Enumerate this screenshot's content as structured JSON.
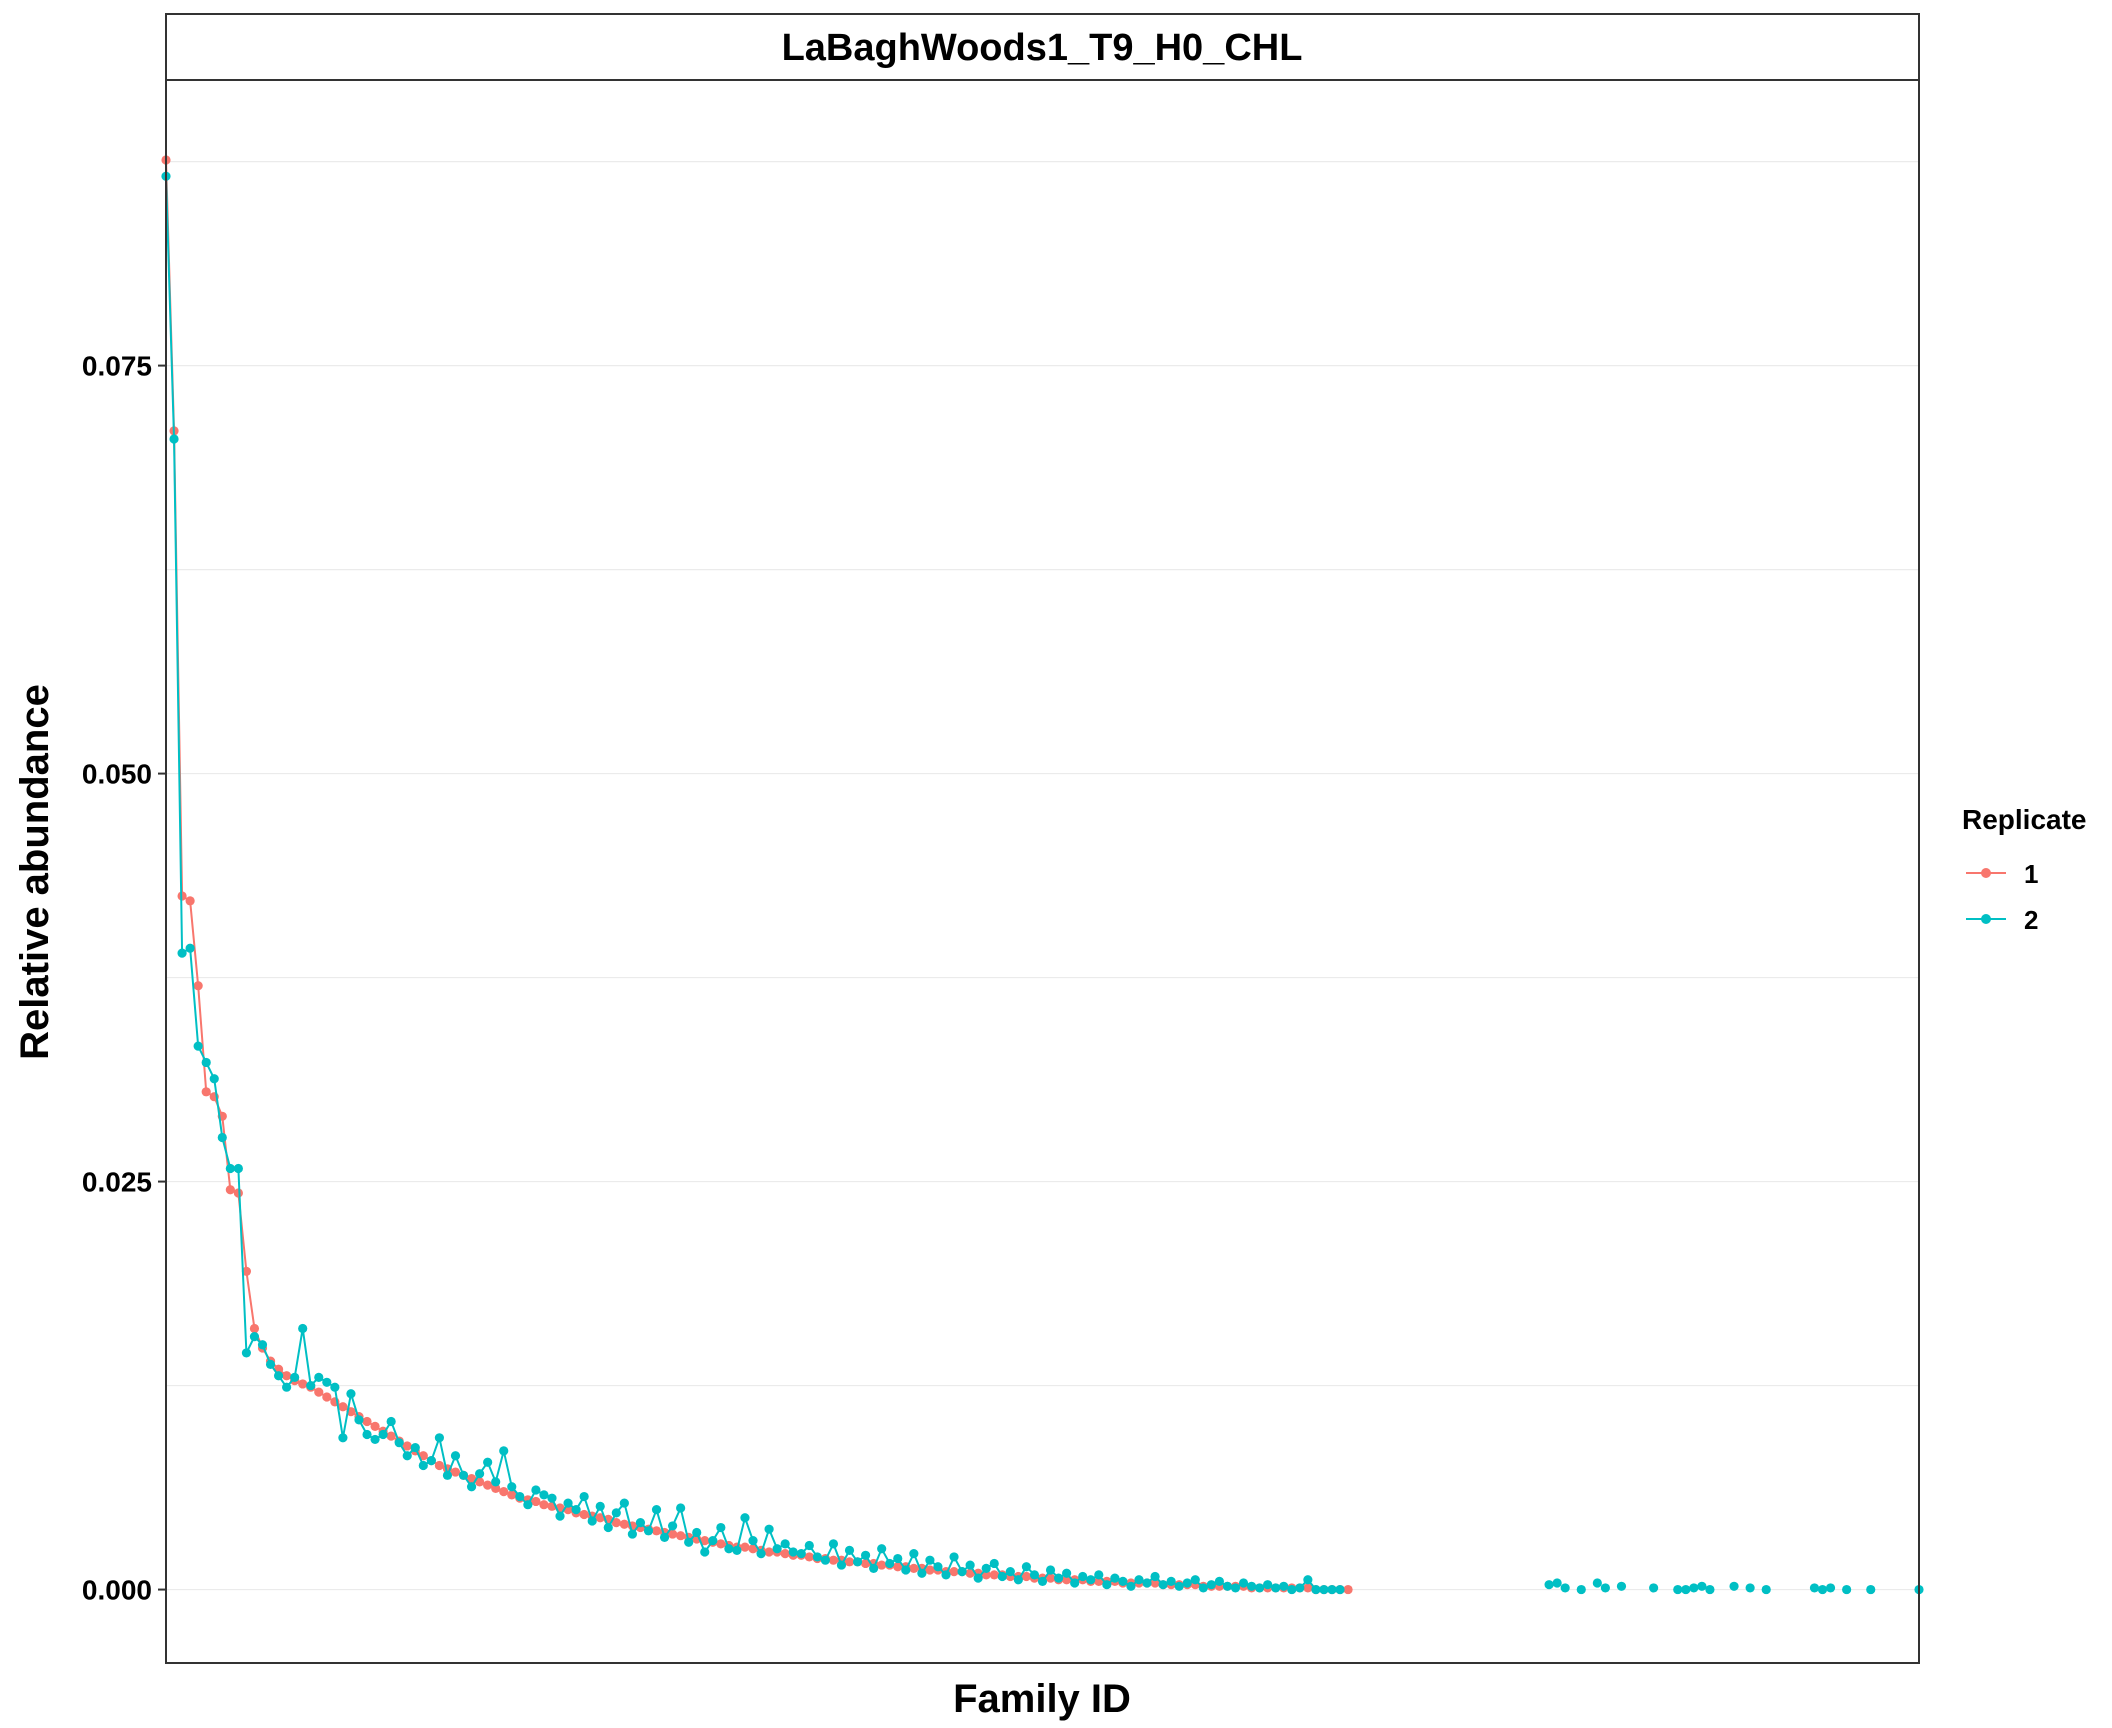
{
  "chart_data": {
    "type": "line",
    "title": "LaBaghWoods1_T9_H0_CHL",
    "xlabel": "Family ID",
    "ylabel": "Relative abundance",
    "ylim": [
      -0.0045,
      0.0925
    ],
    "yticks": [
      0.0,
      0.025,
      0.05,
      0.075
    ],
    "ytick_labels": [
      "0.000",
      "0.025",
      "0.050",
      "0.075"
    ],
    "grid": "horizontal",
    "legend": {
      "title": "Replicate",
      "position": "right"
    },
    "series": [
      {
        "name": "1",
        "color": "#F8766D",
        "values": [
          0.0876,
          0.071,
          0.0425,
          0.0422,
          0.037,
          0.0305,
          0.0302,
          0.029,
          0.0245,
          0.0243,
          0.0195,
          0.016,
          0.0148,
          0.014,
          0.0135,
          0.0131,
          0.0128,
          0.0126,
          0.0124,
          0.0121,
          0.0118,
          0.0115,
          0.0112,
          0.0109,
          0.0106,
          0.0103,
          0.01,
          0.0097,
          0.0094,
          0.0091,
          0.0088,
          0.0085,
          0.0082,
          0.0079,
          0.0076,
          0.0074,
          0.0072,
          0.007,
          0.0068,
          0.0066,
          0.0064,
          0.0062,
          0.006,
          0.0058,
          0.0056,
          0.0055,
          0.0054,
          0.0052,
          0.0051,
          0.005,
          0.0049,
          0.0047,
          0.0046,
          0.0045,
          0.0044,
          0.0043,
          0.0041,
          0.004,
          0.0039,
          0.0038,
          0.0037,
          0.0036,
          0.0035,
          0.0034,
          0.0033,
          0.0032,
          0.0031,
          0.003,
          0.0029,
          0.0028,
          0.0027,
          0.0026,
          0.0026,
          0.0025,
          0.0024,
          0.0023,
          0.0023,
          0.0022,
          0.0021,
          0.0021,
          0.002,
          0.0019,
          0.0019,
          0.0018,
          0.0018,
          0.0017,
          0.0017,
          0.0016,
          0.0016,
          0.0015,
          0.0015,
          0.0014,
          0.0014,
          0.0013,
          0.0013,
          0.0012,
          0.0012,
          0.0011,
          0.0011,
          0.0011,
          0.001,
          0.001,
          0.0009,
          0.0009,
          0.0009,
          0.0008,
          0.0008,
          0.0008,
          0.0007,
          0.0007,
          0.0007,
          0.0006,
          0.0006,
          0.0006,
          0.0006,
          0.0005,
          0.0005,
          0.0005,
          0.0005,
          0.0004,
          0.0004,
          0.0004,
          0.0004,
          0.0004,
          0.0003,
          0.0003,
          0.0003,
          0.0003,
          0.0003,
          0.0002,
          0.0002,
          0.0002,
          0.0002,
          0.0002,
          0.0002,
          0.0001,
          0.0001,
          0.0001,
          0.0001,
          0.0001,
          0.0001,
          0.0001,
          0.0001,
          0.0,
          0.0,
          0.0,
          0.0,
          0.0
        ]
      },
      {
        "name": "2",
        "color": "#00BFC4",
        "values": [
          0.0866,
          0.0705,
          0.039,
          0.0393,
          0.0333,
          0.0323,
          0.0313,
          0.0277,
          0.0258,
          0.0258,
          0.0145,
          0.0155,
          0.015,
          0.0138,
          0.0131,
          0.0124,
          0.013,
          0.016,
          0.0125,
          0.013,
          0.0127,
          0.0124,
          0.0093,
          0.012,
          0.0104,
          0.0095,
          0.0092,
          0.0095,
          0.0103,
          0.009,
          0.0082,
          0.0087,
          0.0076,
          0.0079,
          0.0093,
          0.007,
          0.0082,
          0.007,
          0.0063,
          0.0071,
          0.0078,
          0.0066,
          0.0085,
          0.0063,
          0.0057,
          0.0052,
          0.0061,
          0.0058,
          0.0056,
          0.0045,
          0.0053,
          0.0049,
          0.0057,
          0.0042,
          0.0051,
          0.0038,
          0.0047,
          0.0053,
          0.0034,
          0.0041,
          0.0036,
          0.0049,
          0.0032,
          0.0039,
          0.005,
          0.0029,
          0.0035,
          0.0023,
          0.003,
          0.0038,
          0.0025,
          0.0024,
          0.0044,
          0.003,
          0.0022,
          0.0037,
          0.0025,
          0.0028,
          0.0023,
          0.0022,
          0.0027,
          0.002,
          0.0018,
          0.0028,
          0.0015,
          0.0024,
          0.0017,
          0.0021,
          0.0013,
          0.0025,
          0.0016,
          0.0019,
          0.0012,
          0.0022,
          0.001,
          0.0018,
          0.0014,
          0.0009,
          0.002,
          0.0011,
          0.0015,
          0.0007,
          0.0013,
          0.0016,
          0.0008,
          0.0011,
          0.0006,
          0.0014,
          0.0009,
          0.0005,
          0.0012,
          0.0007,
          0.001,
          0.0004,
          0.0008,
          0.0006,
          0.0009,
          0.0003,
          0.0007,
          0.0005,
          0.0002,
          0.0006,
          0.0004,
          0.0008,
          0.0003,
          0.0005,
          0.0002,
          0.0004,
          0.0006,
          0.0001,
          0.0003,
          0.0005,
          0.0002,
          0.0001,
          0.0004,
          0.0002,
          0.0001,
          0.0003,
          0.0001,
          0.0002,
          0.0,
          0.0001,
          0.0006,
          0.0,
          0.0,
          0.0,
          0.0
        ],
        "tail_points": [
          [
            172,
            0.0003
          ],
          [
            173,
            0.0004
          ],
          [
            174,
            0.0001
          ],
          [
            176,
            0.0
          ],
          [
            178,
            0.0004
          ],
          [
            179,
            0.0001
          ],
          [
            181,
            0.0002
          ],
          [
            185,
            0.0001
          ],
          [
            188,
            0.0
          ],
          [
            189,
            0.0
          ],
          [
            190,
            0.0001
          ],
          [
            191,
            0.0002
          ],
          [
            192,
            0.0
          ],
          [
            195,
            0.0002
          ],
          [
            197,
            0.0001
          ],
          [
            199,
            0.0
          ],
          [
            205,
            0.0001
          ],
          [
            206,
            0.0
          ],
          [
            207,
            0.0001
          ],
          [
            209,
            0.0
          ],
          [
            212,
            0.0
          ],
          [
            218,
            0.0
          ]
        ]
      }
    ]
  }
}
